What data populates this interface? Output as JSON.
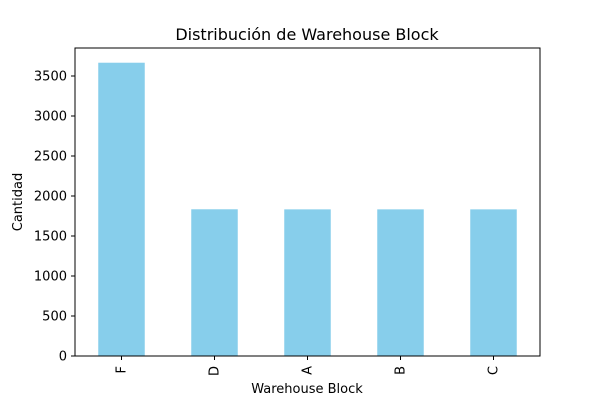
{
  "chart_data": {
    "type": "bar",
    "title": "Distribución de Warehouse Block",
    "xlabel": "Warehouse Block",
    "ylabel": "Cantidad",
    "categories": [
      "F",
      "D",
      "A",
      "B",
      "C"
    ],
    "values": [
      3666,
      1834,
      1833,
      1833,
      1833
    ],
    "ylim": [
      0,
      3850
    ],
    "yticks": [
      0,
      500,
      1000,
      1500,
      2000,
      2500,
      3000,
      3500
    ],
    "bar_color": "#87ceeb",
    "grid": false,
    "legend": "none"
  }
}
